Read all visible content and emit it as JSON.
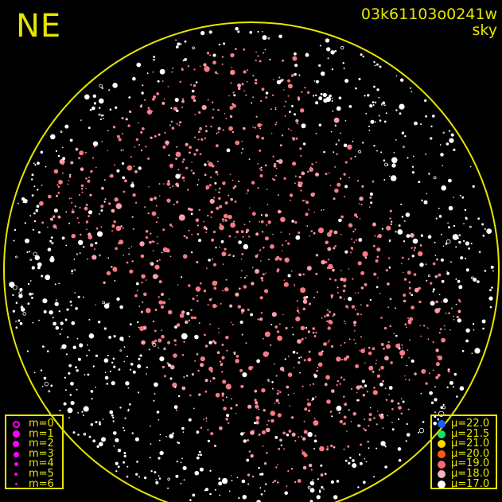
{
  "direction_label": "NE",
  "image_id": "03k61103o0241w",
  "image_type": "sky",
  "horizon_color": "#e6e600",
  "magnitude_legend": {
    "marker_color": "#ff00ff",
    "items": [
      {
        "label": "m=0",
        "hollow": true
      },
      {
        "label": "m=1"
      },
      {
        "label": "m=2"
      },
      {
        "label": "m=3"
      },
      {
        "label": "m=4"
      },
      {
        "label": "m=5"
      },
      {
        "label": "m=6"
      }
    ]
  },
  "sky_brightness_legend": {
    "items": [
      {
        "label": "μ=22.0",
        "color": "#1a5cff"
      },
      {
        "label": "μ=21.5",
        "color": "#19e06a"
      },
      {
        "label": "μ=21.0",
        "color": "#ffd800"
      },
      {
        "label": "μ=20.0",
        "color": "#ff5a10"
      },
      {
        "label": "μ=19.0",
        "color": "#f86a74"
      },
      {
        "label": "μ=18.0",
        "color": "#f8b0c0"
      },
      {
        "label": "μ=17.0",
        "color": "#ffffff"
      }
    ]
  }
}
